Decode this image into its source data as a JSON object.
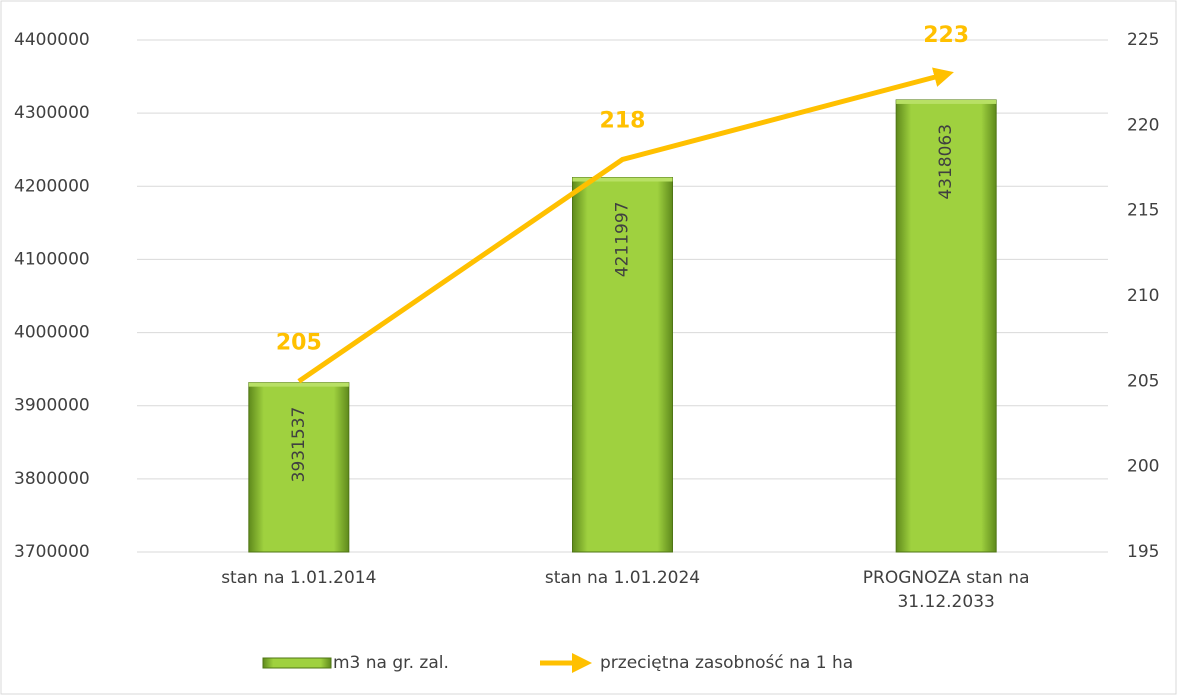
{
  "chart_data": {
    "type": "bar",
    "categories": [
      "stan na 1.01.2014",
      "stan na 1.01.2024",
      "PROGNOZA stan na 31.12.2033"
    ],
    "series": [
      {
        "name": "m3 na gr. zal.",
        "type": "bar",
        "color": "#8dc63f",
        "values": [
          3931537,
          4211997,
          4318063
        ]
      },
      {
        "name": "przeciętna zasobność na 1 ha",
        "type": "line",
        "axis": "y2",
        "color": "#ffc000",
        "values": [
          205,
          218,
          223
        ]
      }
    ],
    "ylim": [
      3700000,
      4400000
    ],
    "yticks": [
      3700000,
      3800000,
      3900000,
      4000000,
      4100000,
      4200000,
      4300000,
      4400000
    ],
    "y2lim": [
      195,
      225
    ],
    "y2ticks": [
      195,
      200,
      205,
      210,
      215,
      220,
      225
    ],
    "grid": true,
    "legend": "bottom"
  }
}
